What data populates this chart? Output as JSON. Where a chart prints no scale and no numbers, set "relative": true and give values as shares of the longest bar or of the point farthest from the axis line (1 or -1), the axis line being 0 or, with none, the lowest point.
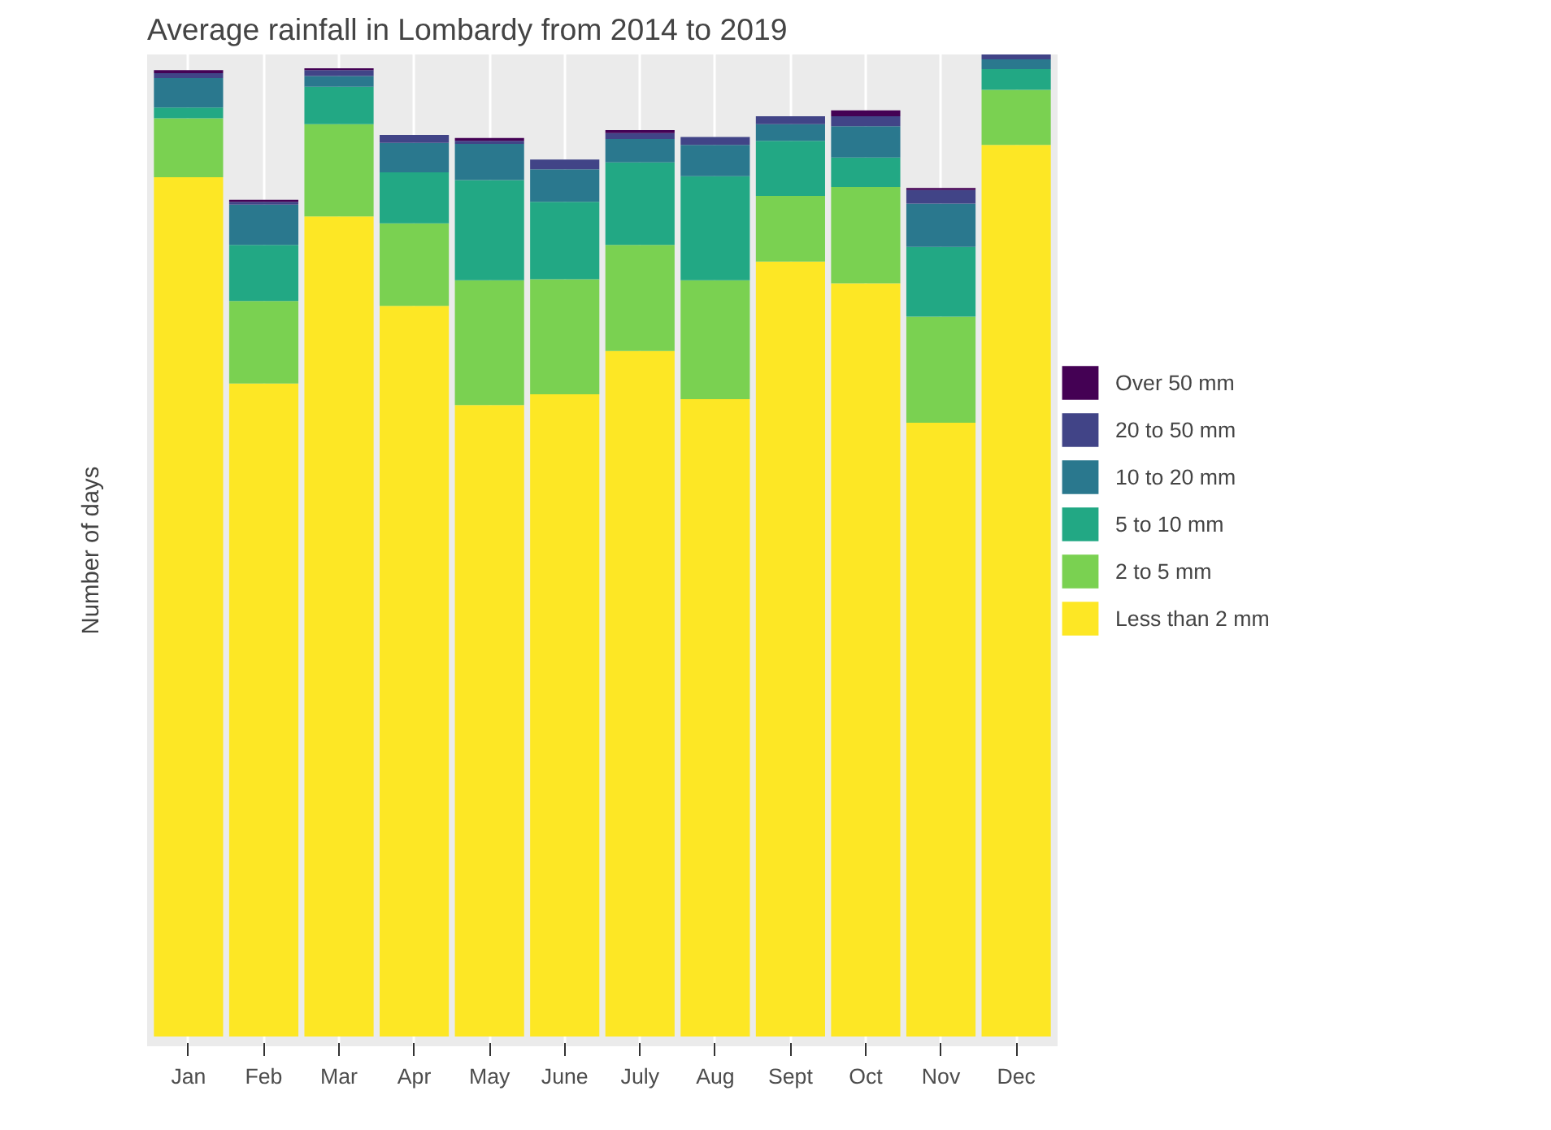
{
  "chart_data": {
    "type": "bar",
    "title": "Average rainfall in Lombardy from 2014 to 2019",
    "ylabel": "Number of days",
    "relative": true,
    "stacked": true,
    "grid": "x",
    "legend": "right",
    "categories": [
      "Jan",
      "Feb",
      "Mar",
      "Apr",
      "May",
      "June",
      "July",
      "Aug",
      "Sept",
      "Oct",
      "Nov",
      "Dec"
    ],
    "series": [
      {
        "name": "Less than 2 mm",
        "color": "#fde725",
        "values": [
          0.875,
          0.665,
          0.835,
          0.744,
          0.643,
          0.654,
          0.698,
          0.649,
          0.789,
          0.767,
          0.625,
          0.908
        ]
      },
      {
        "name": "2 to 5 mm",
        "color": "#7ad151",
        "values": [
          0.06,
          0.084,
          0.094,
          0.084,
          0.127,
          0.117,
          0.108,
          0.121,
          0.067,
          0.098,
          0.108,
          0.056
        ]
      },
      {
        "name": "5 to 10 mm",
        "color": "#22a884",
        "values": [
          0.011,
          0.057,
          0.038,
          0.052,
          0.102,
          0.079,
          0.084,
          0.106,
          0.056,
          0.03,
          0.071,
          0.021
        ]
      },
      {
        "name": "10 to 20 mm",
        "color": "#2a788e",
        "values": [
          0.03,
          0.041,
          0.011,
          0.03,
          0.037,
          0.033,
          0.024,
          0.032,
          0.017,
          0.032,
          0.044,
          0.01
        ]
      },
      {
        "name": "20 to 50 mm",
        "color": "#414487",
        "values": [
          0.005,
          0.003,
          0.006,
          0.008,
          0.003,
          0.01,
          0.006,
          0.008,
          0.008,
          0.01,
          0.014,
          0.005
        ]
      },
      {
        "name": "Over 50 mm",
        "color": "#440154",
        "values": [
          0.003,
          0.002,
          0.002,
          0,
          0.003,
          0,
          0.003,
          0,
          0,
          0.006,
          0.002,
          0
        ]
      }
    ]
  }
}
